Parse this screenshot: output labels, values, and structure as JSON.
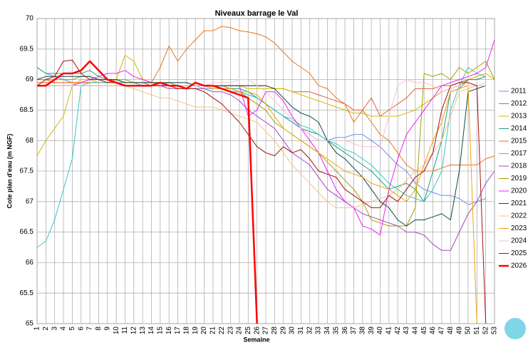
{
  "chart_data": {
    "type": "line",
    "title": "Niveaux barrage le Val",
    "x_label": "Semaine",
    "y_label": "Cote plan d'eau (m NGF)",
    "categories": [
      "1",
      "2",
      "3",
      "4",
      "5",
      "6",
      "7",
      "8",
      "9",
      "10",
      "11",
      "12",
      "13",
      "14",
      "15",
      "16",
      "17",
      "18",
      "19",
      "20",
      "21",
      "22",
      "23",
      "24",
      "25",
      "26",
      "27",
      "28",
      "29",
      "30",
      "31",
      "32",
      "33",
      "34",
      "35",
      "36",
      "37",
      "38",
      "39",
      "40",
      "41",
      "42",
      "43",
      "44",
      "45",
      "46",
      "47",
      "48",
      "49",
      "50",
      "51",
      "52",
      "53"
    ],
    "ylim": [
      65,
      70
    ],
    "yticks": [
      65,
      65.5,
      66,
      66.5,
      67,
      67.5,
      68,
      68.5,
      69,
      69.5,
      70
    ],
    "grid": true,
    "series": [
      {
        "name": "2011",
        "color": "#6a8ff0",
        "values": [
          69.2,
          69.1,
          69.05,
          69.0,
          68.95,
          68.95,
          68.95,
          68.95,
          68.95,
          68.95,
          68.9,
          68.9,
          68.9,
          68.9,
          68.9,
          68.95,
          68.95,
          68.95,
          68.9,
          68.9,
          68.9,
          68.85,
          68.8,
          68.8,
          68.75,
          68.7,
          68.6,
          68.5,
          68.4,
          68.3,
          68.2,
          68.1,
          68.0,
          68.0,
          68.05,
          68.05,
          68.1,
          68.1,
          68.0,
          67.9,
          67.75,
          67.6,
          67.5,
          67.3,
          67.2,
          67.15,
          67.1,
          67.1,
          67.05,
          66.95,
          67.0,
          67.05,
          null
        ]
      },
      {
        "name": "2012",
        "color": "#e0603c",
        "values": [
          69.0,
          69.0,
          68.95,
          68.95,
          68.95,
          68.95,
          68.95,
          68.95,
          68.95,
          68.95,
          68.95,
          68.95,
          68.95,
          68.9,
          68.9,
          68.9,
          68.9,
          68.9,
          68.9,
          68.9,
          68.9,
          68.9,
          68.9,
          68.9,
          68.9,
          68.9,
          68.9,
          68.85,
          68.85,
          68.8,
          68.8,
          68.8,
          68.75,
          68.7,
          68.65,
          68.6,
          68.5,
          68.5,
          68.7,
          68.4,
          68.5,
          68.6,
          68.7,
          68.85,
          68.85,
          68.85,
          68.9,
          68.9,
          68.95,
          69.0,
          69.0,
          69.05,
          null
        ]
      },
      {
        "name": "2013",
        "color": "#d4b800",
        "values": [
          67.75,
          68.0,
          68.2,
          68.4,
          68.9,
          69.0,
          69.0,
          68.95,
          68.95,
          69.0,
          69.4,
          69.3,
          69.0,
          68.95,
          68.9,
          68.9,
          68.9,
          68.9,
          68.9,
          68.9,
          68.9,
          68.9,
          68.9,
          68.9,
          68.85,
          68.85,
          68.85,
          68.85,
          68.85,
          68.8,
          68.75,
          68.7,
          68.65,
          68.6,
          68.55,
          68.5,
          68.45,
          68.45,
          68.4,
          68.4,
          68.4,
          68.4,
          68.45,
          68.5,
          68.6,
          68.7,
          68.8,
          68.85,
          68.9,
          69.0,
          69.05,
          69.1,
          69.0
        ]
      },
      {
        "name": "2014",
        "color": "#1f9e80",
        "values": [
          69.2,
          69.1,
          69.1,
          69.1,
          69.1,
          69.1,
          69.15,
          69.05,
          69.0,
          69.0,
          68.95,
          68.95,
          68.9,
          68.9,
          68.9,
          68.9,
          68.9,
          68.9,
          68.9,
          68.9,
          68.9,
          68.85,
          68.85,
          68.85,
          68.8,
          68.7,
          68.6,
          68.5,
          68.4,
          68.3,
          68.2,
          68.15,
          68.1,
          68.0,
          67.9,
          67.8,
          67.7,
          67.6,
          67.5,
          67.35,
          67.2,
          67.25,
          67.3,
          67.2,
          67.0,
          67.5,
          68.0,
          68.8,
          68.85,
          69.0,
          69.0,
          69.05,
          null
        ]
      },
      {
        "name": "2015",
        "color": "#e8761a",
        "values": [
          68.95,
          68.95,
          68.95,
          68.95,
          68.95,
          68.95,
          68.95,
          68.95,
          68.95,
          68.95,
          68.95,
          68.95,
          68.95,
          68.95,
          69.2,
          69.55,
          69.3,
          69.5,
          69.65,
          69.8,
          69.8,
          69.87,
          69.85,
          69.8,
          69.78,
          69.75,
          69.7,
          69.6,
          69.45,
          69.3,
          69.2,
          69.1,
          68.9,
          68.85,
          68.7,
          68.6,
          68.3,
          68.5,
          68.3,
          68.1,
          68.0,
          67.8,
          67.6,
          67.5,
          67.5,
          67.5,
          67.55,
          67.6,
          67.6,
          67.6,
          67.6,
          67.7,
          67.75
        ]
      },
      {
        "name": "2017",
        "color": "#3fc4c4",
        "values": [
          66.25,
          66.35,
          66.7,
          67.2,
          67.7,
          68.9,
          68.95,
          68.95,
          68.95,
          68.95,
          68.95,
          68.95,
          68.9,
          68.9,
          68.9,
          68.9,
          68.9,
          68.9,
          68.9,
          68.85,
          68.85,
          68.85,
          68.8,
          68.8,
          68.75,
          68.7,
          68.6,
          68.5,
          68.4,
          68.35,
          68.25,
          68.2,
          68.1,
          68.0,
          67.95,
          67.85,
          67.8,
          67.7,
          67.6,
          67.45,
          67.3,
          67.2,
          67.1,
          67.05,
          67.0,
          67.2,
          67.5,
          68.5,
          68.9,
          69.2,
          69.1,
          69.05,
          null
        ]
      },
      {
        "name": "2018",
        "color": "#a447c2",
        "values": [
          68.9,
          68.9,
          68.9,
          68.9,
          68.9,
          68.9,
          68.9,
          68.9,
          68.9,
          68.9,
          68.9,
          68.9,
          68.9,
          68.9,
          68.9,
          68.85,
          68.85,
          68.85,
          68.85,
          68.85,
          68.8,
          68.8,
          68.75,
          68.65,
          68.5,
          68.4,
          68.3,
          68.2,
          68.0,
          67.8,
          67.7,
          67.6,
          67.4,
          67.2,
          67.1,
          67.0,
          66.9,
          66.8,
          66.75,
          66.7,
          66.65,
          66.6,
          66.5,
          66.5,
          66.45,
          66.3,
          66.2,
          66.2,
          66.5,
          66.8,
          67.0,
          67.3,
          67.5
        ]
      },
      {
        "name": "2019",
        "color": "#a3a000",
        "values": [
          69.0,
          69.0,
          69.0,
          69.0,
          69.0,
          69.05,
          69.05,
          69.0,
          69.0,
          69.0,
          69.0,
          68.95,
          68.95,
          68.95,
          68.95,
          68.95,
          68.9,
          68.9,
          68.9,
          68.9,
          68.9,
          68.9,
          68.85,
          68.8,
          68.7,
          68.6,
          68.5,
          68.3,
          68.2,
          68.1,
          68.0,
          67.9,
          67.8,
          67.65,
          67.5,
          67.35,
          67.2,
          67.0,
          66.7,
          66.65,
          66.6,
          66.6,
          66.6,
          66.9,
          69.1,
          69.05,
          69.1,
          69.0,
          69.2,
          69.1,
          69.2,
          69.3,
          69.0
        ]
      },
      {
        "name": "2020",
        "color": "#f020f0",
        "values": [
          68.9,
          68.9,
          68.9,
          68.9,
          68.9,
          68.95,
          69.0,
          69.05,
          69.1,
          69.1,
          69.15,
          69.05,
          69.0,
          68.95,
          68.95,
          68.9,
          68.9,
          68.9,
          68.9,
          68.9,
          68.9,
          68.9,
          68.9,
          68.9,
          68.4,
          68.5,
          68.8,
          68.8,
          68.65,
          68.4,
          68.2,
          68.0,
          67.8,
          67.5,
          67.2,
          67.0,
          66.9,
          66.6,
          66.55,
          66.45,
          67.2,
          67.7,
          68.1,
          68.3,
          68.5,
          68.7,
          68.9,
          68.95,
          69.0,
          69.05,
          69.1,
          69.2,
          69.65
        ]
      },
      {
        "name": "2021",
        "color": "#0b4a46",
        "values": [
          69.0,
          69.05,
          69.05,
          69.05,
          69.05,
          69.05,
          69.05,
          69.0,
          69.0,
          69.0,
          68.95,
          68.95,
          68.95,
          68.95,
          68.95,
          68.95,
          68.95,
          68.95,
          68.9,
          68.9,
          68.9,
          68.9,
          68.9,
          68.9,
          68.9,
          68.9,
          68.9,
          68.85,
          68.7,
          68.55,
          68.45,
          68.4,
          68.3,
          68.0,
          67.8,
          67.7,
          67.55,
          67.4,
          67.2,
          67.0,
          66.9,
          66.7,
          66.6,
          66.7,
          66.7,
          66.75,
          66.8,
          66.7,
          67.5,
          68.8,
          68.85,
          68.9,
          null
        ]
      },
      {
        "name": "2022",
        "color": "#f9c08a",
        "values": [
          68.9,
          68.9,
          68.9,
          68.9,
          68.9,
          68.9,
          68.9,
          68.9,
          68.9,
          68.9,
          68.9,
          68.85,
          68.8,
          68.75,
          68.7,
          68.7,
          68.65,
          68.6,
          68.55,
          68.55,
          68.55,
          68.5,
          68.45,
          68.4,
          68.35,
          68.3,
          68.15,
          68.0,
          67.8,
          67.6,
          67.45,
          67.3,
          67.15,
          67.0,
          66.9,
          66.9,
          66.9,
          66.95,
          67.0,
          67.05,
          67.1,
          67.2,
          67.35,
          67.5,
          67.6,
          67.8,
          68.0,
          68.4,
          68.8,
          68.85,
          68.9,
          68.9,
          null
        ]
      },
      {
        "name": "2023",
        "color": "#f0a30a",
        "values": [
          68.9,
          68.9,
          68.9,
          68.9,
          68.9,
          68.9,
          68.9,
          68.9,
          68.9,
          68.9,
          68.9,
          68.9,
          68.9,
          68.9,
          68.9,
          68.9,
          68.9,
          68.9,
          68.9,
          68.9,
          68.85,
          68.85,
          68.85,
          68.8,
          68.8,
          68.75,
          68.6,
          68.4,
          68.2,
          68.1,
          68.0,
          67.9,
          67.8,
          67.7,
          67.6,
          67.5,
          67.45,
          67.4,
          67.3,
          67.25,
          67.2,
          67.1,
          67.0,
          67.2,
          67.6,
          68.0,
          68.3,
          68.8,
          68.85,
          68.9,
          65,
          null,
          null
        ]
      },
      {
        "name": "2024",
        "color": "#f2c3d3",
        "values": [
          68.9,
          68.9,
          68.9,
          68.9,
          68.9,
          68.9,
          68.9,
          68.9,
          68.9,
          68.9,
          68.9,
          68.9,
          68.9,
          68.9,
          68.9,
          68.9,
          68.9,
          68.9,
          68.9,
          68.9,
          68.95,
          68.95,
          68.95,
          69.0,
          69.0,
          68.9,
          68.8,
          68.65,
          68.5,
          68.35,
          68.2,
          68.1,
          68.0,
          68.0,
          68.0,
          68.0,
          67.95,
          67.9,
          67.9,
          67.9,
          68.4,
          68.9,
          69.0,
          68.95,
          68.95,
          68.9,
          68.8,
          68.85,
          68.9,
          68.9,
          68.9,
          68.95,
          null
        ]
      },
      {
        "name": "2025",
        "color": "#a50f0f",
        "values": [
          68.9,
          69.0,
          69.05,
          69.3,
          69.32,
          69.1,
          69.0,
          69.0,
          68.95,
          68.95,
          68.9,
          68.9,
          68.9,
          68.9,
          68.9,
          68.9,
          68.85,
          68.85,
          68.85,
          68.8,
          68.7,
          68.6,
          68.45,
          68.3,
          68.1,
          67.9,
          67.8,
          67.75,
          67.9,
          67.8,
          67.85,
          67.7,
          67.5,
          67.45,
          67.4,
          67.2,
          67.1,
          67.0,
          66.9,
          66.9,
          67.1,
          67.0,
          67.2,
          67.4,
          67.5,
          67.8,
          68.5,
          68.9,
          68.95,
          68.95,
          68.9,
          65,
          null
        ]
      },
      {
        "name": "2026",
        "color": "#ff0000",
        "values": [
          68.9,
          68.9,
          69.0,
          69.1,
          69.1,
          69.15,
          69.3,
          69.15,
          69.0,
          68.95,
          68.9,
          68.9,
          68.9,
          68.9,
          68.95,
          68.9,
          68.9,
          68.85,
          68.95,
          68.9,
          68.9,
          68.85,
          68.8,
          68.75,
          68.7,
          65,
          null,
          null,
          null,
          null,
          null,
          null,
          null,
          null,
          null,
          null,
          null,
          null,
          null,
          null,
          null,
          null,
          null,
          null,
          null,
          null,
          null,
          null,
          null,
          null,
          null,
          null,
          null
        ]
      }
    ]
  }
}
